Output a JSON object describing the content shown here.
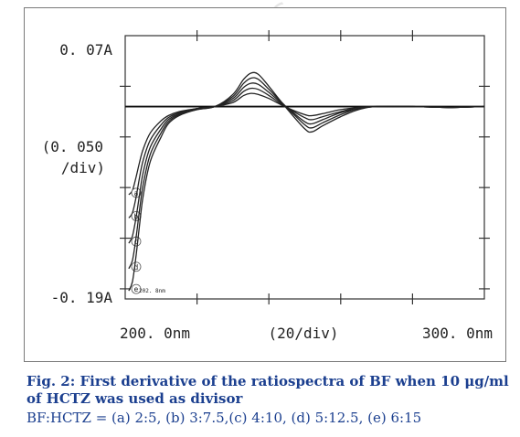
{
  "chart_data": {
    "type": "line",
    "title": "",
    "xlabel": "(20/div)",
    "ylabel": "(0. 050\n/div)",
    "x_tick_labels": [
      "200. 0nm",
      "300. 0nm"
    ],
    "y_top_label": "0. 07A",
    "y_bottom_label": "-0. 19A",
    "xlim": [
      200,
      300
    ],
    "ylim": [
      -0.19,
      0.07
    ],
    "corner_label": "202. 8nm",
    "curve_labels": [
      "a",
      "b",
      "c",
      "d",
      "e"
    ],
    "x": [
      201,
      202,
      203,
      204,
      205,
      207,
      210,
      212,
      215,
      220,
      225,
      230,
      233,
      235,
      237,
      240,
      245,
      250,
      252,
      255,
      260,
      265,
      270,
      280,
      290,
      300
    ],
    "series": [
      {
        "name": "a",
        "values": [
          -0.087,
          -0.083,
          -0.07,
          -0.055,
          -0.042,
          -0.026,
          -0.014,
          -0.009,
          -0.005,
          -0.002,
          0.0,
          0.004,
          0.011,
          0.013,
          0.012,
          0.008,
          -0.001,
          -0.008,
          -0.009,
          -0.007,
          -0.003,
          -0.001,
          0.0,
          0.0,
          -0.001,
          0.0
        ]
      },
      {
        "name": "b",
        "values": [
          -0.11,
          -0.105,
          -0.09,
          -0.07,
          -0.053,
          -0.033,
          -0.018,
          -0.011,
          -0.006,
          -0.002,
          0.0,
          0.006,
          0.015,
          0.018,
          0.017,
          0.011,
          -0.001,
          -0.011,
          -0.013,
          -0.01,
          -0.005,
          -0.001,
          0.0,
          0.0,
          -0.001,
          0.0
        ]
      },
      {
        "name": "c",
        "values": [
          -0.135,
          -0.128,
          -0.11,
          -0.087,
          -0.065,
          -0.04,
          -0.022,
          -0.013,
          -0.007,
          -0.002,
          0.0,
          0.008,
          0.019,
          0.023,
          0.022,
          0.014,
          -0.001,
          -0.015,
          -0.017,
          -0.013,
          -0.006,
          -0.002,
          0.0,
          0.0,
          -0.001,
          0.0
        ]
      },
      {
        "name": "d",
        "values": [
          -0.16,
          -0.152,
          -0.13,
          -0.102,
          -0.077,
          -0.047,
          -0.026,
          -0.015,
          -0.008,
          -0.003,
          0.0,
          0.01,
          0.023,
          0.028,
          0.027,
          0.017,
          -0.001,
          -0.018,
          -0.021,
          -0.016,
          -0.008,
          -0.002,
          0.0,
          0.0,
          -0.001,
          0.0
        ]
      },
      {
        "name": "e",
        "values": [
          -0.182,
          -0.173,
          -0.148,
          -0.117,
          -0.088,
          -0.054,
          -0.03,
          -0.017,
          -0.009,
          -0.003,
          0.0,
          0.012,
          0.027,
          0.033,
          0.032,
          0.02,
          -0.002,
          -0.022,
          -0.025,
          -0.019,
          -0.01,
          -0.003,
          0.0,
          0.0,
          -0.001,
          0.0
        ]
      }
    ]
  },
  "caption": {
    "line1": "Fig. 2: First derivative of the ratiospectra of BF when 10 μg/ml of HCTZ was used as divisor",
    "line2": "BF:HCTZ = (a)  2:5,  (b)  3:7.5,(c)  4:10,  (d)  5:12.5,  (e)  6:15"
  }
}
